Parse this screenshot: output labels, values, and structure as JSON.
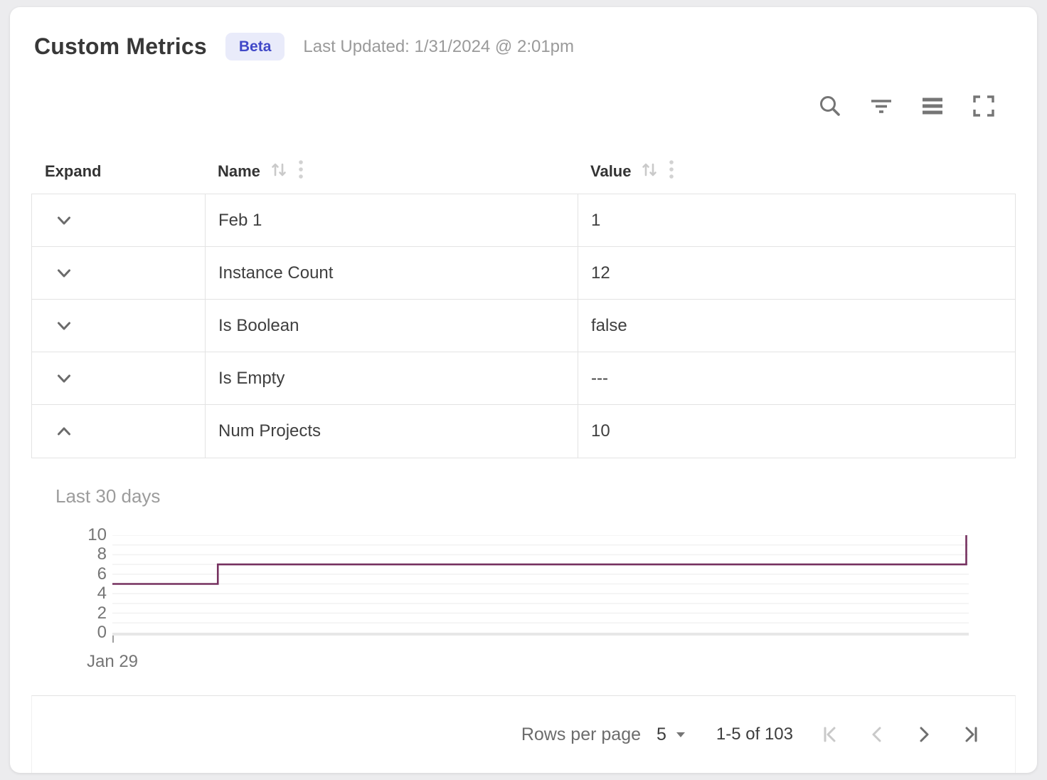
{
  "header": {
    "title": "Custom Metrics",
    "badge_label": "Beta",
    "last_updated": "Last Updated: 1/31/2024 @ 2:01pm"
  },
  "toolbar": {
    "icons": [
      "search",
      "filter",
      "density",
      "fullscreen"
    ]
  },
  "table": {
    "columns": [
      {
        "label": "Expand",
        "sortable": false
      },
      {
        "label": "Name",
        "sortable": true
      },
      {
        "label": "Value",
        "sortable": true
      }
    ],
    "rows": [
      {
        "name": "Feb 1",
        "value": "1",
        "expanded": false
      },
      {
        "name": "Instance Count",
        "value": "12",
        "expanded": false
      },
      {
        "name": "Is Boolean",
        "value": "false",
        "expanded": false
      },
      {
        "name": "Is Empty",
        "value": "---",
        "expanded": false
      },
      {
        "name": "Num Projects",
        "value": "10",
        "expanded": true
      }
    ]
  },
  "detail_panel": {
    "title": "Last 30 days",
    "x_start_label": "Jan 29"
  },
  "chart_data": {
    "type": "line",
    "line_style": "step-after",
    "title": "Last 30 days",
    "x_range_days": 30,
    "x_start_label": "Jan 29",
    "ylim": [
      0,
      10
    ],
    "yticks": [
      0,
      2,
      4,
      6,
      8,
      10
    ],
    "grid": true,
    "points": [
      {
        "x": 0,
        "y": 5
      },
      {
        "x": 3.7,
        "y": 5
      },
      {
        "x": 3.7,
        "y": 7
      },
      {
        "x": 30,
        "y": 7
      },
      {
        "x": 30,
        "y": 10
      }
    ],
    "line_color": "#75305f",
    "grid_color": "#f2f2f2",
    "axis_color": "#e7e7e7"
  },
  "pagination": {
    "rows_per_page_label": "Rows per page",
    "rows_per_page_value": "5",
    "range_label": "1-5 of 103",
    "first_disabled": true,
    "prev_disabled": true,
    "next_disabled": false,
    "last_disabled": false
  },
  "colors": {
    "accent_line": "#75305f",
    "badge_bg": "#e9ebfa",
    "badge_text": "#4149c8",
    "border": "#e3e3e3",
    "icon": "#757575",
    "icon_disabled": "#c9c9c9",
    "text_primary": "#3f3f3f",
    "text_secondary": "#9a9a9a"
  }
}
